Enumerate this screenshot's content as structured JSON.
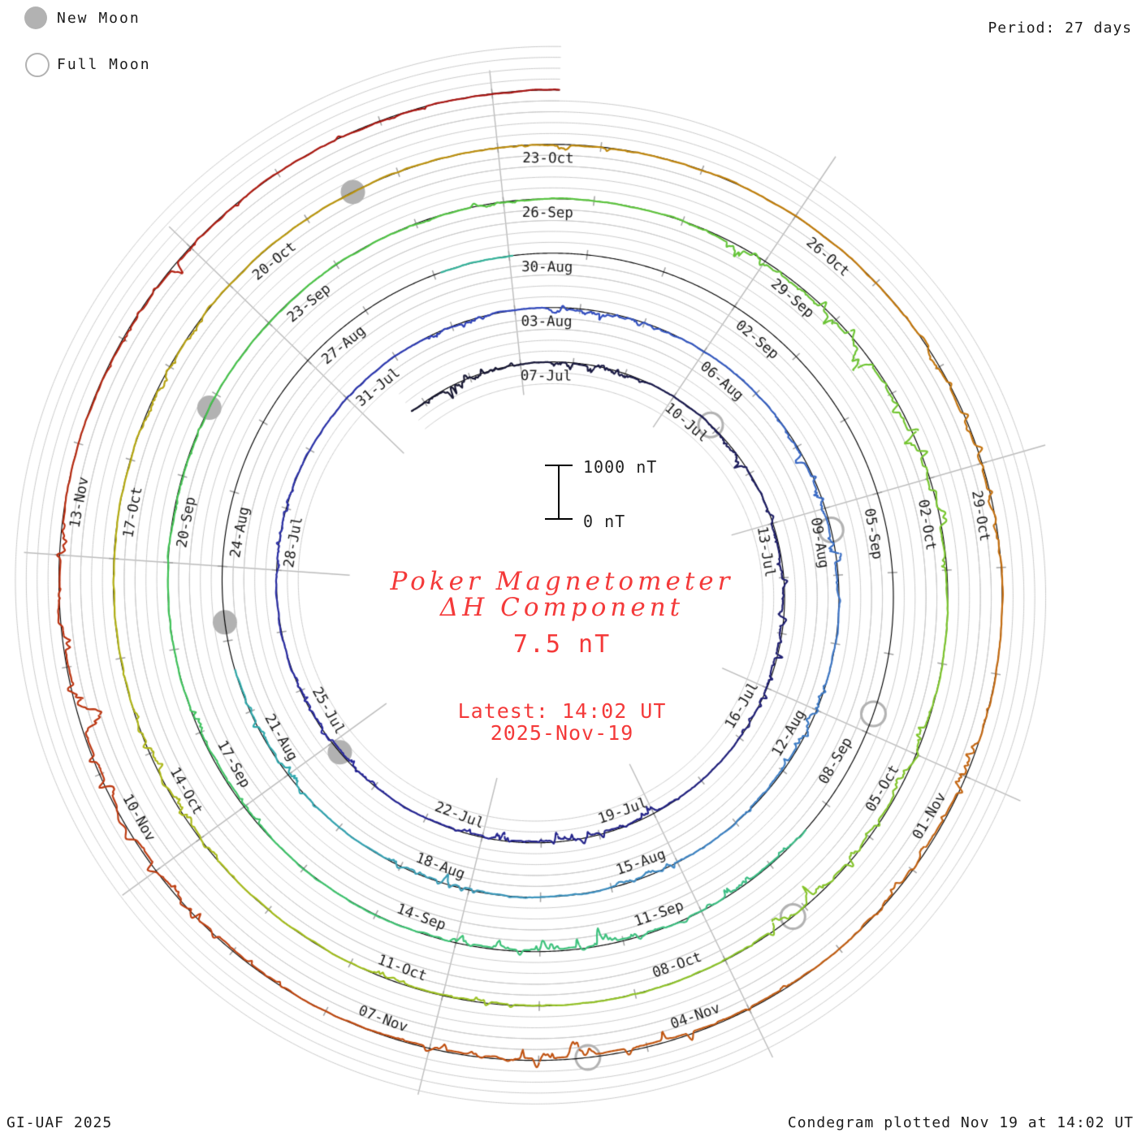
{
  "legend": {
    "new_moon_label": "New Moon",
    "full_moon_label": "Full Moon"
  },
  "header": {
    "period_label": "Period: 27 days"
  },
  "footer": {
    "left": "GI-UAF 2025",
    "right": "Condegram plotted Nov 19 at 14:02 UT"
  },
  "center": {
    "title_line1": "Poker Magnetometer",
    "title_line2": "ΔH Component",
    "current_value": "7.5 nT",
    "latest_line1": "Latest: 14:02 UT",
    "latest_line2": "2025-Nov-19"
  },
  "scalebar": {
    "top_label": "1000 nT",
    "bottom_label": "0 nT"
  },
  "colors": {
    "accent_red": "#f43a3a",
    "grid": "#c9c9c9",
    "spoke": "#bbbbbb",
    "baseline": "#000000",
    "tick": "#a0a0a0",
    "moon_gray": "#b2b2b2",
    "label_text": "#1a1a1a",
    "page_bg": "#ffffff"
  },
  "chart_data": {
    "type": "line",
    "subtype": "condegram-spiral-polar",
    "title": "Poker Magnetometer ΔH Component",
    "units": "nT",
    "period_days": 27,
    "label_step_days": 3,
    "direction": "clockwise",
    "epoch_top": "2025-Jul-07 00:00 UT",
    "trace_start_day": -2.3,
    "trace_end_day": 135.585,
    "end_label": "2025-Nov-19 14:02 UT",
    "latest_value_nT": 7.5,
    "grid_interval_nT": 200,
    "ring_interval_nT": 1000,
    "grid_offsets_nT": [
      -400,
      -200,
      200,
      400,
      600,
      800
    ],
    "ring_labels": [
      {
        "label": "07-Jul",
        "day": 0
      },
      {
        "label": "10-Jul",
        "day": 3
      },
      {
        "label": "13-Jul",
        "day": 6
      },
      {
        "label": "16-Jul",
        "day": 9
      },
      {
        "label": "19-Jul",
        "day": 12
      },
      {
        "label": "22-Jul",
        "day": 15
      },
      {
        "label": "25-Jul",
        "day": 18
      },
      {
        "label": "28-Jul",
        "day": 21
      },
      {
        "label": "31-Jul",
        "day": 24
      },
      {
        "label": "03-Aug",
        "day": 27
      },
      {
        "label": "06-Aug",
        "day": 30
      },
      {
        "label": "09-Aug",
        "day": 33
      },
      {
        "label": "12-Aug",
        "day": 36
      },
      {
        "label": "15-Aug",
        "day": 39
      },
      {
        "label": "18-Aug",
        "day": 42
      },
      {
        "label": "21-Aug",
        "day": 45
      },
      {
        "label": "24-Aug",
        "day": 48
      },
      {
        "label": "27-Aug",
        "day": 51
      },
      {
        "label": "30-Aug",
        "day": 54
      },
      {
        "label": "02-Sep",
        "day": 57
      },
      {
        "label": "05-Sep",
        "day": 60
      },
      {
        "label": "08-Sep",
        "day": 63
      },
      {
        "label": "11-Sep",
        "day": 66
      },
      {
        "label": "14-Sep",
        "day": 69
      },
      {
        "label": "17-Sep",
        "day": 72
      },
      {
        "label": "20-Sep",
        "day": 75
      },
      {
        "label": "23-Sep",
        "day": 78
      },
      {
        "label": "26-Sep",
        "day": 81
      },
      {
        "label": "29-Sep",
        "day": 84
      },
      {
        "label": "02-Oct",
        "day": 87
      },
      {
        "label": "05-Oct",
        "day": 90
      },
      {
        "label": "08-Oct",
        "day": 93
      },
      {
        "label": "11-Oct",
        "day": 96
      },
      {
        "label": "14-Oct",
        "day": 99
      },
      {
        "label": "17-Oct",
        "day": 102
      },
      {
        "label": "20-Oct",
        "day": 105
      },
      {
        "label": "23-Oct",
        "day": 108
      },
      {
        "label": "26-Oct",
        "day": 111
      },
      {
        "label": "29-Oct",
        "day": 114
      },
      {
        "label": "01-Nov",
        "day": 117
      },
      {
        "label": "04-Nov",
        "day": 120
      },
      {
        "label": "07-Nov",
        "day": 123
      },
      {
        "label": "10-Nov",
        "day": 126
      },
      {
        "label": "13-Nov",
        "day": 129
      }
    ],
    "moons": {
      "full": [
        {
          "date": "Jul 10",
          "day": 3.86
        },
        {
          "date": "Aug 9",
          "day": 33.33
        },
        {
          "date": "Sep 7",
          "day": 62.76
        },
        {
          "date": "Oct 7",
          "day": 92.16
        },
        {
          "date": "Nov 5",
          "day": 121.55
        }
      ],
      "new": [
        {
          "date": "Jul 25",
          "day": 17.8
        },
        {
          "date": "Aug 23",
          "day": 47.25
        },
        {
          "date": "Sep 22",
          "day": 76.83
        },
        {
          "date": "Oct 21",
          "day": 106.52
        }
      ]
    },
    "data_gaps_days": [
      [
        46.6,
        53.1
      ],
      [
        54.05,
        64.4
      ]
    ],
    "quiet_noise_nT": 12,
    "disturbance_events": [
      {
        "d": -2.3,
        "len": 2.4,
        "neg": -360,
        "pos": 130
      },
      {
        "d": 0.2,
        "len": 2.3,
        "neg": -300,
        "pos": 140
      },
      {
        "d": 3.8,
        "len": 1.6,
        "neg": -210,
        "pos": 80
      },
      {
        "d": 5.4,
        "len": 4.6,
        "neg": -420,
        "pos": 170
      },
      {
        "d": 11.4,
        "len": 4.2,
        "neg": -380,
        "pos": 150
      },
      {
        "d": 16.8,
        "len": 2.6,
        "neg": -260,
        "pos": 100
      },
      {
        "d": 20.8,
        "len": 1.6,
        "neg": -180,
        "pos": 70
      },
      {
        "d": 25.3,
        "len": 1.4,
        "neg": -160,
        "pos": 60
      },
      {
        "d": 27.4,
        "len": 2.2,
        "neg": -320,
        "pos": 130
      },
      {
        "d": 31.4,
        "len": 3.2,
        "neg": -460,
        "pos": 190
      },
      {
        "d": 35.4,
        "len": 2.6,
        "neg": -380,
        "pos": 150
      },
      {
        "d": 38.4,
        "len": 1.6,
        "neg": -210,
        "pos": 90
      },
      {
        "d": 41.4,
        "len": 2.2,
        "neg": -280,
        "pos": 110
      },
      {
        "d": 44.3,
        "len": 2.2,
        "neg": -300,
        "pos": 120
      },
      {
        "d": 64.5,
        "len": 1.6,
        "neg": -260,
        "pos": 100
      },
      {
        "d": 65.9,
        "len": 3.6,
        "neg": -430,
        "pos": 250
      },
      {
        "d": 71.3,
        "len": 2.2,
        "neg": -300,
        "pos": 120
      },
      {
        "d": 75.3,
        "len": 1.6,
        "neg": -170,
        "pos": 60
      },
      {
        "d": 79.8,
        "len": 1.6,
        "neg": -200,
        "pos": 80
      },
      {
        "d": 82.9,
        "len": 5.6,
        "neg": -680,
        "pos": 280
      },
      {
        "d": 89.3,
        "len": 3.6,
        "neg": -470,
        "pos": 190
      },
      {
        "d": 94.8,
        "len": 2.1,
        "neg": -260,
        "pos": 100
      },
      {
        "d": 98.3,
        "len": 2.6,
        "neg": -330,
        "pos": 130
      },
      {
        "d": 103.3,
        "len": 1.6,
        "neg": -150,
        "pos": 60
      },
      {
        "d": 107.8,
        "len": 1.6,
        "neg": -160,
        "pos": 60
      },
      {
        "d": 112.3,
        "len": 2.6,
        "neg": -350,
        "pos": 140
      },
      {
        "d": 116.3,
        "len": 2.6,
        "neg": -430,
        "pos": 170
      },
      {
        "d": 119.3,
        "len": 4.2,
        "neg": -520,
        "pos": 210
      },
      {
        "d": 124.3,
        "len": 5.2,
        "neg": -560,
        "pos": 230
      },
      {
        "d": 130.2,
        "len": 2.6,
        "neg": -330,
        "pos": 130
      },
      {
        "d": 133.3,
        "len": 1.4,
        "neg": -150,
        "pos": 80
      }
    ],
    "colormap": [
      {
        "d": -2.3,
        "c": "#16162e"
      },
      {
        "d": 0,
        "c": "#191938"
      },
      {
        "d": 6,
        "c": "#1e1e66"
      },
      {
        "d": 12,
        "c": "#232385"
      },
      {
        "d": 18,
        "c": "#28289c"
      },
      {
        "d": 24,
        "c": "#2d35ad"
      },
      {
        "d": 27,
        "c": "#3147bd"
      },
      {
        "d": 33,
        "c": "#3a6cc4"
      },
      {
        "d": 39,
        "c": "#3e86c4"
      },
      {
        "d": 43,
        "c": "#38a0b4"
      },
      {
        "d": 45,
        "c": "#2fa8ae"
      },
      {
        "d": 53.5,
        "c": "#35b39b"
      },
      {
        "d": 64.5,
        "c": "#3bbd88"
      },
      {
        "d": 69,
        "c": "#3ec377"
      },
      {
        "d": 75,
        "c": "#40c355"
      },
      {
        "d": 81,
        "c": "#55c441"
      },
      {
        "d": 84,
        "c": "#66c438"
      },
      {
        "d": 87,
        "c": "#76c52f"
      },
      {
        "d": 93,
        "c": "#8bc42a"
      },
      {
        "d": 96,
        "c": "#9cc021"
      },
      {
        "d": 99,
        "c": "#aaba1a"
      },
      {
        "d": 102,
        "c": "#b3ae12"
      },
      {
        "d": 105,
        "c": "#b99c10"
      },
      {
        "d": 108,
        "c": "#bd8e0e"
      },
      {
        "d": 111,
        "c": "#c17d0c"
      },
      {
        "d": 114,
        "c": "#c4720e"
      },
      {
        "d": 117,
        "c": "#c36511"
      },
      {
        "d": 120,
        "c": "#c05a12"
      },
      {
        "d": 123,
        "c": "#c04e10"
      },
      {
        "d": 126,
        "c": "#bd3d11"
      },
      {
        "d": 129,
        "c": "#b92f10"
      },
      {
        "d": 132,
        "c": "#b22013"
      },
      {
        "d": 135.6,
        "c": "#a51111"
      }
    ],
    "legend_position": "top-left",
    "grid": true
  }
}
